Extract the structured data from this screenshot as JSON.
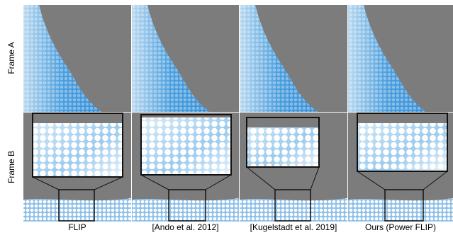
{
  "row_labels": [
    "Frame A",
    "Frame B"
  ],
  "columns": [
    "FLIP",
    "[Ando et al. 2012]",
    "[Kugelstadt et al. 2019]",
    "Ours (Power FLIP)"
  ]
}
